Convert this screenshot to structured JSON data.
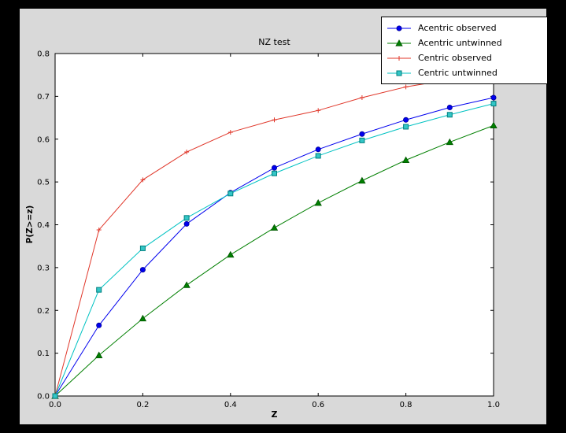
{
  "figure": {
    "outer_background": "#000000",
    "facecolor": "#d9d9d9",
    "plot_background": "#ffffff",
    "axes_edge_color": "#000000"
  },
  "chart_data": {
    "type": "line",
    "title": "NZ test",
    "xlabel": "Z",
    "ylabel": "P(Z>=z)",
    "xlim": [
      0.0,
      1.0
    ],
    "ylim": [
      0.0,
      0.8
    ],
    "xticks": [
      0.0,
      0.2,
      0.4,
      0.6,
      0.8,
      1.0
    ],
    "yticks": [
      0.0,
      0.1,
      0.2,
      0.3,
      0.4,
      0.5,
      0.6,
      0.7,
      0.8
    ],
    "grid": false,
    "legend_position": "upper right, overlapping figure top-right margin",
    "x": [
      0.0,
      0.1,
      0.2,
      0.3,
      0.4,
      0.5,
      0.6,
      0.7,
      0.8,
      0.9,
      1.0
    ],
    "series": [
      {
        "name": "Acentric observed",
        "color": "#0000ee",
        "marker": "circle",
        "marker_fill": "#0000ee",
        "marker_edge": "#000099",
        "values": [
          0.0,
          0.165,
          0.295,
          0.402,
          0.475,
          0.533,
          0.576,
          0.612,
          0.645,
          0.674,
          0.697
        ]
      },
      {
        "name": "Acentric untwinned",
        "color": "#007f00",
        "marker": "triangle-up",
        "marker_fill": "#007f00",
        "marker_edge": "#005500",
        "values": [
          0.0,
          0.095,
          0.181,
          0.259,
          0.33,
          0.393,
          0.451,
          0.503,
          0.551,
          0.593,
          0.632
        ]
      },
      {
        "name": "Centric observed",
        "color": "#e0372a",
        "marker": "plus",
        "marker_fill": "#e0372a",
        "marker_edge": "#e0372a",
        "values": [
          0.0,
          0.388,
          0.505,
          0.57,
          0.616,
          0.645,
          0.667,
          0.697,
          0.722,
          0.739,
          0.753
        ]
      },
      {
        "name": "Centric untwinned",
        "color": "#00c2c2",
        "marker": "square",
        "marker_fill": "#33c6c6",
        "marker_edge": "#007f7f",
        "values": [
          0.0,
          0.248,
          0.345,
          0.416,
          0.473,
          0.52,
          0.561,
          0.597,
          0.629,
          0.657,
          0.683
        ]
      }
    ]
  }
}
